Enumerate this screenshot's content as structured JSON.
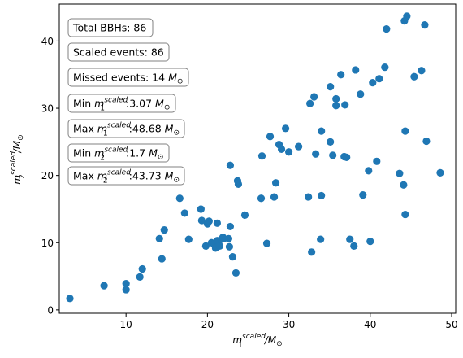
{
  "chart_data": {
    "type": "scatter",
    "title": "",
    "xlabel": {
      "base": "m",
      "sub": "1",
      "sup": "scaled",
      "unit": "/M",
      "unit_sub": "⊙"
    },
    "ylabel": {
      "base": "m",
      "sub": "2",
      "sup": "scaled",
      "unit": "/M",
      "unit_sub": "⊙"
    },
    "xlim": [
      1.8,
      50.5
    ],
    "ylim": [
      -0.5,
      45.5
    ],
    "xticks": [
      10,
      20,
      30,
      40,
      50
    ],
    "yticks": [
      0,
      10,
      20,
      30,
      40
    ],
    "grid": false,
    "marker_color": "#1f77b4",
    "points": [
      [
        3.1,
        1.7
      ],
      [
        7.3,
        3.6
      ],
      [
        10.0,
        3.9
      ],
      [
        10.0,
        3.0
      ],
      [
        11.7,
        4.9
      ],
      [
        12.0,
        6.1
      ],
      [
        14.1,
        10.6
      ],
      [
        14.4,
        7.6
      ],
      [
        14.7,
        11.9
      ],
      [
        16.6,
        16.6
      ],
      [
        17.2,
        14.4
      ],
      [
        17.7,
        10.5
      ],
      [
        19.2,
        15.0
      ],
      [
        19.3,
        13.3
      ],
      [
        19.8,
        9.5
      ],
      [
        20.0,
        12.8
      ],
      [
        20.2,
        13.2
      ],
      [
        20.5,
        10.0
      ],
      [
        20.8,
        9.8
      ],
      [
        21.0,
        9.2
      ],
      [
        21.2,
        10.3
      ],
      [
        21.2,
        12.9
      ],
      [
        21.5,
        9.5
      ],
      [
        21.7,
        10.5
      ],
      [
        21.9,
        10.8
      ],
      [
        22.0,
        10.6
      ],
      [
        22.6,
        10.6
      ],
      [
        22.7,
        9.4
      ],
      [
        22.8,
        21.5
      ],
      [
        22.8,
        12.4
      ],
      [
        23.1,
        7.9
      ],
      [
        23.5,
        5.5
      ],
      [
        23.7,
        19.2
      ],
      [
        23.8,
        18.7
      ],
      [
        24.6,
        14.1
      ],
      [
        26.6,
        16.6
      ],
      [
        26.7,
        22.9
      ],
      [
        27.3,
        9.9
      ],
      [
        27.7,
        25.8
      ],
      [
        28.2,
        16.8
      ],
      [
        28.4,
        18.9
      ],
      [
        28.8,
        24.6
      ],
      [
        29.1,
        23.9
      ],
      [
        29.6,
        27.0
      ],
      [
        30.0,
        23.5
      ],
      [
        31.2,
        24.3
      ],
      [
        32.4,
        16.8
      ],
      [
        32.6,
        30.7
      ],
      [
        32.8,
        8.6
      ],
      [
        33.1,
        31.7
      ],
      [
        33.3,
        23.2
      ],
      [
        33.9,
        10.5
      ],
      [
        34.0,
        17.0
      ],
      [
        34.0,
        26.6
      ],
      [
        35.1,
        25.0
      ],
      [
        35.1,
        33.2
      ],
      [
        35.4,
        23.0
      ],
      [
        35.8,
        31.4
      ],
      [
        35.8,
        30.4
      ],
      [
        36.4,
        35.0
      ],
      [
        36.8,
        22.8
      ],
      [
        36.9,
        30.5
      ],
      [
        37.1,
        22.7
      ],
      [
        37.5,
        10.5
      ],
      [
        38.0,
        9.5
      ],
      [
        38.2,
        35.7
      ],
      [
        38.8,
        32.1
      ],
      [
        39.1,
        17.1
      ],
      [
        39.8,
        20.7
      ],
      [
        40.0,
        10.2
      ],
      [
        40.3,
        33.8
      ],
      [
        40.8,
        22.1
      ],
      [
        41.1,
        34.4
      ],
      [
        41.8,
        36.1
      ],
      [
        42.0,
        41.8
      ],
      [
        43.6,
        20.3
      ],
      [
        44.1,
        18.6
      ],
      [
        44.2,
        43.0
      ],
      [
        44.3,
        26.6
      ],
      [
        44.3,
        14.2
      ],
      [
        44.5,
        43.7
      ],
      [
        45.4,
        34.7
      ],
      [
        46.3,
        35.6
      ],
      [
        46.7,
        42.4
      ],
      [
        46.9,
        25.1
      ],
      [
        48.6,
        20.4
      ]
    ],
    "legend": "none",
    "annotations": [
      {
        "kind": "text",
        "text": "Total BBHs: 86"
      },
      {
        "kind": "text",
        "text": "Scaled events: 86"
      },
      {
        "kind": "math",
        "prefix": "Missed events: 14 ",
        "value": "",
        "unit": "M",
        "unit_sub": "⊙"
      },
      {
        "kind": "math",
        "prefix": "Min ",
        "var": "m",
        "var_sub": "1",
        "var_sup": "scaled",
        "value": ":3.07 ",
        "unit": "M",
        "unit_sub": "⊙"
      },
      {
        "kind": "math",
        "prefix": "Max ",
        "var": "m",
        "var_sub": "1",
        "var_sup": "scaled",
        "value": ":48.68 ",
        "unit": "M",
        "unit_sub": "⊙"
      },
      {
        "kind": "math",
        "prefix": "Min ",
        "var": "m",
        "var_sub": "2",
        "var_sup": "scaled",
        "value": ":1.7 ",
        "unit": "M",
        "unit_sub": "⊙"
      },
      {
        "kind": "math",
        "prefix": "Max ",
        "var": "m",
        "var_sub": "2",
        "var_sup": "scaled",
        "value": ":43.73 ",
        "unit": "M",
        "unit_sub": "⊙"
      }
    ]
  }
}
